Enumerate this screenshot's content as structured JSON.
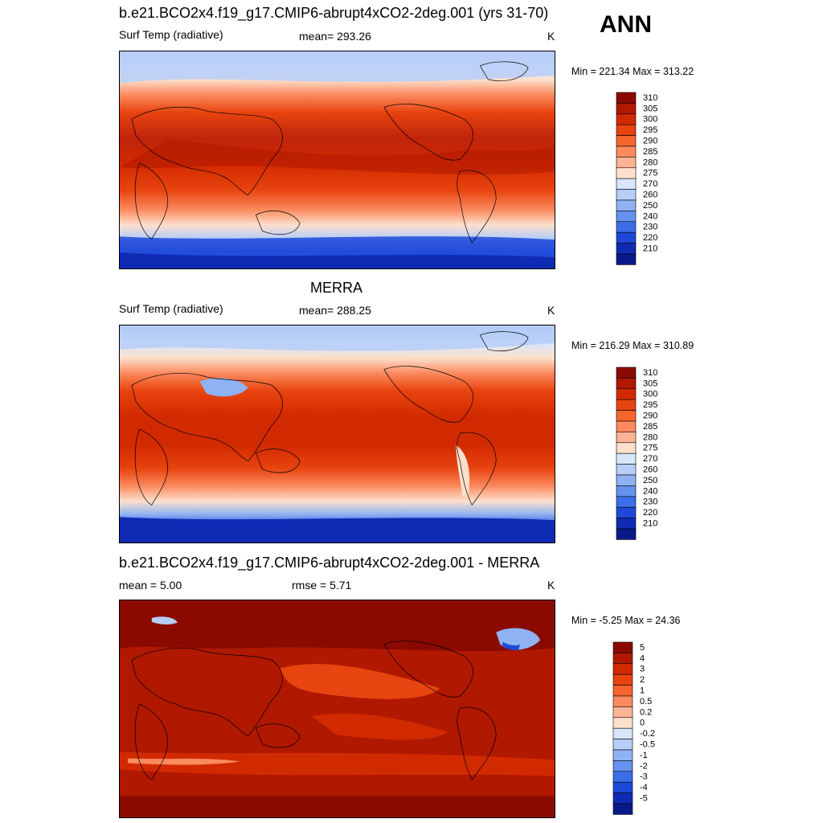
{
  "season": "ANN",
  "panels": [
    {
      "title": "b.e21.BCO2x4.f19_g17.CMIP6-abrupt4xCO2-2deg.001 (yrs 31-70)",
      "left": "Surf Temp (radiative)",
      "center": "mean= 293.26",
      "units": "K",
      "minmax": "Min = 221.34 Max = 313.22"
    },
    {
      "title": "MERRA",
      "left": "Surf Temp (radiative)",
      "center": "mean= 288.25",
      "units": "K",
      "minmax": "Min = 216.29 Max = 310.89"
    },
    {
      "title": "b.e21.BCO2x4.f19_g17.CMIP6-abrupt4xCO2-2deg.001 - MERRA",
      "left": "mean =   5.00",
      "center": "rmse =   5.71",
      "units": "K",
      "minmax": "Min =  -5.25 Max =  24.36"
    }
  ],
  "colorbars": {
    "temperature": {
      "labels": [
        "310",
        "305",
        "300",
        "295",
        "290",
        "285",
        "280",
        "275",
        "270",
        "260",
        "250",
        "240",
        "230",
        "220",
        "210"
      ],
      "colors": [
        "#8b0a00",
        "#b01800",
        "#d22a00",
        "#e8440f",
        "#f7652e",
        "#fb8a5e",
        "#fdb494",
        "#fde0cc",
        "#d8e6fb",
        "#b7cef8",
        "#8fb2f3",
        "#6592ee",
        "#3b6ee8",
        "#1f48d8",
        "#0f2bb4",
        "#081a8a"
      ]
    },
    "difference": {
      "labels": [
        "5",
        "4",
        "3",
        "2",
        "1",
        "0.5",
        "0.2",
        "0",
        "-0.2",
        "-0.5",
        "-1",
        "-2",
        "-3",
        "-4",
        "-5"
      ],
      "colors": [
        "#8b0a00",
        "#b01800",
        "#d22a00",
        "#e8440f",
        "#f7652e",
        "#fb8a5e",
        "#fdb494",
        "#fde0cc",
        "#d8e6fb",
        "#b7cef8",
        "#8fb2f3",
        "#6592ee",
        "#3b6ee8",
        "#1f48d8",
        "#0f2bb4",
        "#081a8a"
      ]
    }
  }
}
